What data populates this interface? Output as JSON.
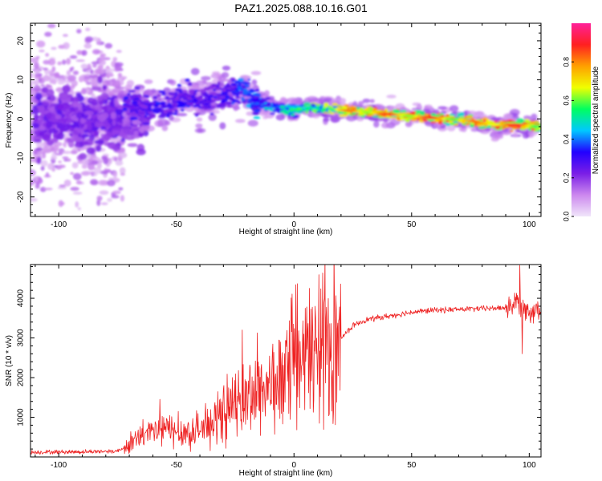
{
  "figure": {
    "title": "PAZ1.2025.088.10.16.G01"
  },
  "chart_data": [
    {
      "type": "heatmap",
      "xlabel": "Height of straight line (km)",
      "ylabel": "Frequency (Hz)",
      "xlim": [
        -112,
        105
      ],
      "ylim": [
        -25,
        24.5
      ],
      "xticks": [
        -100,
        -50,
        0,
        50,
        100
      ],
      "yticks": [
        -20,
        -10,
        0,
        10,
        20
      ],
      "grid": false,
      "colorbar": {
        "label": "Normalized spectral amplitude",
        "range": [
          0,
          1
        ],
        "ticks": [
          0.0,
          0.2,
          0.4,
          0.6,
          0.8
        ],
        "colormap": [
          "#f0e6fa",
          "#cc88ee",
          "#7a1ee6",
          "#2200ff",
          "#00c8ff",
          "#00ff60",
          "#f0ff00",
          "#ffa000",
          "#ff2020",
          "#ff2099"
        ]
      },
      "ridge": {
        "x": [
          -72,
          -65,
          -58,
          -52,
          -46,
          -40,
          -34,
          -28,
          -22,
          -15,
          -8,
          0,
          8,
          15,
          25,
          35,
          45,
          55,
          65,
          75,
          85,
          95,
          105
        ],
        "freq": [
          3.5,
          3,
          2.5,
          4,
          5.5,
          4.5,
          6,
          7,
          7.5,
          4,
          3,
          2,
          3,
          2.5,
          2,
          1.5,
          1,
          0.5,
          0,
          -0.5,
          -1.5,
          -1.5,
          -2
        ],
        "amplitude": [
          0.35,
          0.3,
          0.35,
          0.3,
          0.35,
          0.3,
          0.3,
          0.35,
          0.4,
          0.45,
          0.5,
          0.55,
          0.65,
          0.7,
          0.85,
          0.9,
          0.85,
          0.9,
          0.85,
          0.8,
          0.95,
          0.9,
          0.8
        ]
      }
    },
    {
      "type": "line",
      "xlabel": "Height of straight line (km)",
      "ylabel": "SNR (10 * v/v)",
      "xlim": [
        -112,
        105
      ],
      "ylim": [
        0,
        4850
      ],
      "xticks": [
        -100,
        -50,
        0,
        50,
        100
      ],
      "yticks": [
        1000,
        2000,
        3000,
        4000
      ],
      "grid": false,
      "series": [
        {
          "color": "#ee2222",
          "envelope": {
            "x": [
              -112,
              -90,
              -75,
              -72,
              -65,
              -55,
              -45,
              -35,
              -25,
              -15,
              -5,
              0,
              5,
              10,
              15,
              20,
              25,
              30,
              40,
              50,
              60,
              70,
              80,
              90,
              95,
              100,
              105
            ],
            "y": [
              120,
              130,
              150,
              250,
              500,
              700,
              600,
              800,
              1300,
              1700,
              1900,
              2200,
              2500,
              2700,
              2600,
              3000,
              3300,
              3450,
              3550,
              3650,
              3700,
              3720,
              3740,
              3760,
              3900,
              3700,
              3700
            ]
          },
          "peaks": [
            {
              "x": 96,
              "y": 4830
            },
            {
              "x": 97,
              "y": 2600
            },
            {
              "x": 9,
              "y": 3800
            },
            {
              "x": -22,
              "y": 3200
            },
            {
              "x": -57,
              "y": 1450
            }
          ]
        }
      ]
    }
  ]
}
